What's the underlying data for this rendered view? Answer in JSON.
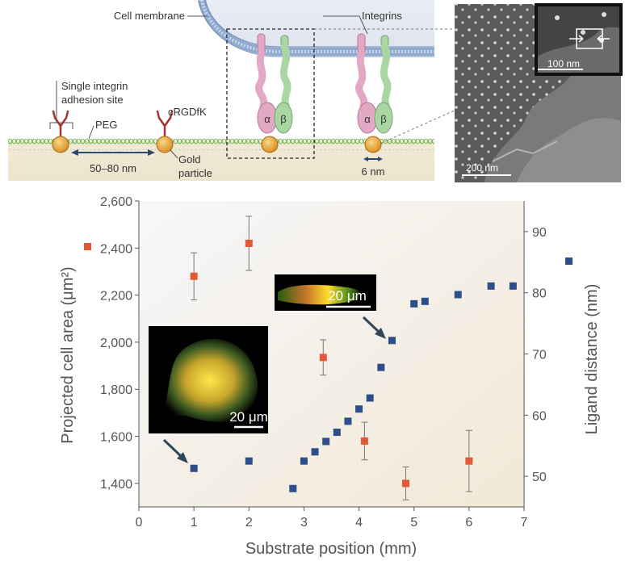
{
  "top": {
    "cell_membrane": "Cell membrane",
    "integrins": "Integrins",
    "single_site_line1": "Single integrin",
    "single_site_line2": "adhesion site",
    "peg": "PEG",
    "crgdfk": "cRGDfK",
    "spacing": "50–80 nm",
    "gold_line1": "Gold",
    "gold_line2": "particle",
    "alpha": "α",
    "beta": "β",
    "six_nm": "6 nm",
    "sem_scale": "200 nm",
    "inset_scale": "100 nm"
  },
  "colors": {
    "gold": "#e9a23b",
    "alpha_subunit": "#e3a9c4",
    "beta_subunit": "#a9d6a3",
    "peg_green": "#7dbb5c",
    "ligand": "#a8322d",
    "area_marker": "#e05a3a",
    "distance_marker": "#2c4f8a"
  },
  "chart_data": {
    "type": "scatter",
    "xlabel": "Substrate position (mm)",
    "ylabel": "Projected cell area (μm²)",
    "y2label": "Ligand distance (nm)",
    "xlim": [
      0,
      7
    ],
    "ylim": [
      1300,
      2600
    ],
    "y2lim": [
      45,
      95
    ],
    "x_ticks": [
      "0",
      "1",
      "2",
      "3",
      "4",
      "5",
      "6",
      "7"
    ],
    "y_ticks": [
      "1,400",
      "1,600",
      "1,800",
      "2,000",
      "2,200",
      "2,400",
      "2,600"
    ],
    "y2_ticks": [
      "50",
      "60",
      "70",
      "80",
      "90"
    ],
    "series": [
      {
        "axis": "left",
        "marker": "square",
        "color": "#e05a3a",
        "x": [
          1,
          2,
          3.35,
          4.1,
          4.85,
          6
        ],
        "y": [
          2280,
          2420,
          1935,
          1580,
          1400,
          1495
        ],
        "err": [
          100,
          115,
          75,
          80,
          70,
          130
        ]
      },
      {
        "axis": "right",
        "marker": "square",
        "color": "#2c4f8a",
        "x": [
          1,
          2,
          2.8,
          3,
          3.2,
          3.4,
          3.6,
          3.8,
          4,
          4.2,
          4.4,
          4.6,
          5,
          5.2,
          5.8,
          6.4,
          6.8
        ],
        "y": [
          51.3,
          52.5,
          48,
          52.5,
          54,
          55.7,
          57.2,
          59,
          61,
          62.8,
          67.8,
          72.2,
          78.2,
          78.6,
          79.7,
          81.1,
          81.1
        ]
      }
    ],
    "insets": [
      {
        "scale_label": "20 μm"
      },
      {
        "scale_label": "20 μm"
      }
    ]
  }
}
